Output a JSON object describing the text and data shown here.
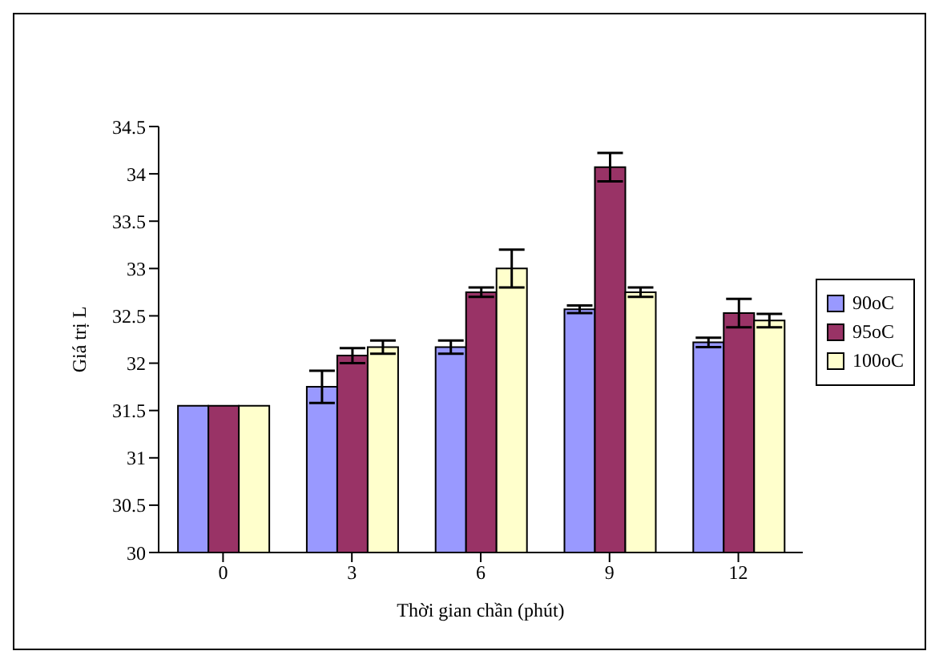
{
  "chart_data": {
    "type": "bar",
    "xlabel": "Thời gian chần (phút)",
    "ylabel": "Giá trị L",
    "categories": [
      "0",
      "3",
      "6",
      "9",
      "12"
    ],
    "series": [
      {
        "name": "90oC",
        "color": "#9999ff",
        "values": [
          31.55,
          31.75,
          32.17,
          32.57,
          32.22
        ],
        "errors": [
          null,
          0.17,
          0.07,
          0.04,
          0.05
        ]
      },
      {
        "name": "95oC",
        "color": "#993366",
        "values": [
          31.55,
          32.08,
          32.75,
          34.07,
          32.53
        ],
        "errors": [
          null,
          0.08,
          0.05,
          0.15,
          0.15
        ]
      },
      {
        "name": "100oC",
        "color": "#ffffcc",
        "values": [
          31.55,
          32.17,
          33.0,
          32.75,
          32.45
        ],
        "errors": [
          null,
          0.07,
          0.2,
          0.05,
          0.07
        ]
      }
    ],
    "ylim": [
      30,
      34.5
    ],
    "yticks": [
      30,
      30.5,
      31,
      31.5,
      32,
      32.5,
      33,
      33.5,
      34,
      34.5
    ],
    "grid": false,
    "legend": "right"
  }
}
